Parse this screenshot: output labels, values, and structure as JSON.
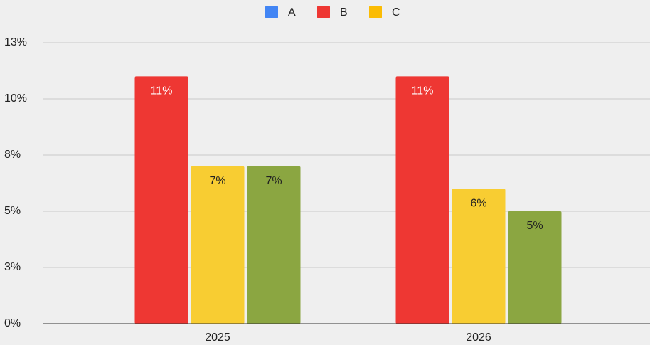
{
  "chart_data": {
    "type": "bar",
    "categories": [
      "2025",
      "2026"
    ],
    "series": [
      {
        "name": "A",
        "color": "#4285f4",
        "values": [
          null,
          null
        ]
      },
      {
        "name": "B",
        "color": "#ee3733",
        "values": [
          11,
          11
        ],
        "value_labels": [
          "11%",
          "11%"
        ]
      },
      {
        "name": "C",
        "color": "#fbbc04",
        "bar_color": "#f8cd32",
        "values": [
          7,
          6
        ],
        "value_labels": [
          "7%",
          "6%"
        ]
      },
      {
        "color": "#8ba641",
        "values": [
          7,
          5
        ],
        "value_labels": [
          "7%",
          "5%"
        ]
      }
    ],
    "ylim": [
      0,
      12.5
    ],
    "yticks": [
      {
        "value": 0,
        "label": "0%"
      },
      {
        "value": 2.5,
        "label": "3%"
      },
      {
        "value": 5,
        "label": "5%"
      },
      {
        "value": 7.5,
        "label": "8%"
      },
      {
        "value": 10,
        "label": "10%"
      },
      {
        "value": 12.5,
        "label": "13%"
      }
    ],
    "grid": true,
    "legend": "top"
  }
}
